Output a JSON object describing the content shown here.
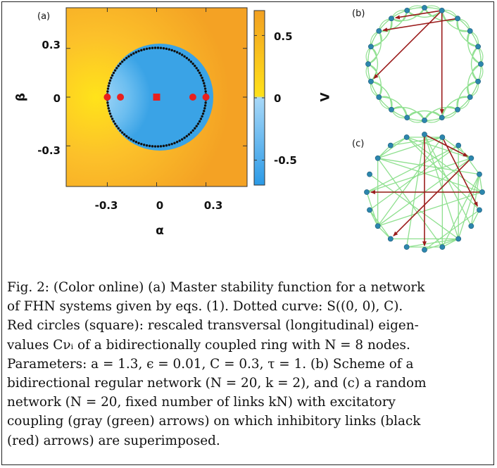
{
  "panel_a": {
    "label": "(a)",
    "x_axis": {
      "label": "α",
      "ticks": [
        "-0.3",
        "0",
        "0.3"
      ],
      "tick_values": [
        -0.3,
        0,
        0.3
      ],
      "range": [
        -0.55,
        0.55
      ]
    },
    "y_axis": {
      "label": "β",
      "ticks": [
        "0.3",
        "0",
        "-0.3"
      ],
      "tick_values": [
        0.3,
        0,
        -0.3
      ],
      "range": [
        -0.55,
        0.55
      ]
    },
    "colorbar": {
      "label": "Λ",
      "ticks": [
        "0.5",
        "0",
        "-0.5"
      ],
      "tick_values": [
        0.5,
        0,
        -0.5
      ],
      "range": [
        -0.7,
        0.7
      ],
      "positive_color": "#f5a623",
      "negative_color": "#39a9e8"
    },
    "stability_curve": {
      "center": [
        0,
        0
      ],
      "radius": 0.3,
      "style": "dotted",
      "color": "#111111"
    },
    "eigenvalues": {
      "circles": [
        -0.3,
        -0.22,
        0.22,
        0.3
      ],
      "squares": [
        0
      ],
      "color": "#e8201e"
    }
  },
  "panel_b": {
    "label": "(b)",
    "nodes": 20,
    "k": 2,
    "type": "regular",
    "inhibitory_links": [
      [
        1,
        9
      ],
      [
        1,
        18
      ],
      [
        1,
        14
      ],
      [
        2,
        17
      ]
    ]
  },
  "panel_c": {
    "label": "(c)",
    "nodes": 20,
    "type": "random",
    "inhibitory_links": [
      [
        0,
        3
      ],
      [
        0,
        10
      ],
      [
        3,
        12
      ],
      [
        5,
        15
      ],
      [
        1,
        6
      ]
    ]
  },
  "colors": {
    "excitatory": "#8fe08f",
    "inhibitory": "#9b1c1c",
    "node": "#2c86ad"
  },
  "caption": {
    "lines": [
      "Fig. 2: (Color online) (a) Master stability function for a network",
      "of FHN systems given by eqs. (1). Dotted curve: S((0, 0), C).",
      "Red circles (square): rescaled transversal (longitudinal) eigen-",
      "values Cνᵢ of a bidirectionally coupled ring with N = 8 nodes.",
      "Parameters: a = 1.3, ϵ = 0.01, C = 0.3, τ = 1. (b) Scheme of a",
      "bidirectional regular network (N = 20, k = 2), and (c) a random",
      "network (N = 20, fixed number of links kN) with excitatory",
      "coupling (gray (green) arrows) on which inhibitory links (black",
      "(red) arrows) are superimposed."
    ]
  }
}
